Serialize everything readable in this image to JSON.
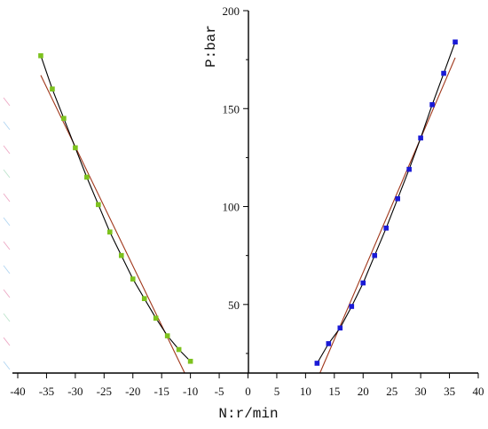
{
  "chart_data": {
    "type": "scatter",
    "title": "",
    "xlabel": "N:r/min",
    "ylabel": "P:bar",
    "xlim": [
      -40,
      40
    ],
    "ylim": [
      15,
      200
    ],
    "x_ticks": [
      -40,
      -35,
      -30,
      -25,
      -20,
      -15,
      -10,
      -5,
      0,
      5,
      10,
      15,
      20,
      25,
      30,
      35,
      40
    ],
    "y_ticks": [
      50,
      100,
      150,
      200
    ],
    "grid": false,
    "legend": "none",
    "colors": {
      "left_points": "#7dc21e",
      "right_points": "#1a1ad6",
      "data_line": "#000000",
      "fit_line": "#a0361a"
    },
    "series": [
      {
        "points": [
          [
            -36,
            177
          ],
          [
            -34,
            160
          ],
          [
            -32,
            145
          ],
          [
            -30,
            130
          ],
          [
            -28,
            115
          ],
          [
            -26,
            101
          ],
          [
            -24,
            87
          ],
          [
            -22,
            75
          ],
          [
            -20,
            63
          ],
          [
            -18,
            53
          ],
          [
            -16,
            43
          ],
          [
            -14,
            34
          ],
          [
            -12,
            27
          ],
          [
            -10,
            21
          ]
        ],
        "fit": [
          [
            -36,
            167
          ],
          [
            -11,
            15
          ]
        ]
      },
      {
        "points": [
          [
            12,
            20
          ],
          [
            14,
            30
          ],
          [
            16,
            38
          ],
          [
            18,
            49
          ],
          [
            20,
            61
          ],
          [
            22,
            75
          ],
          [
            24,
            89
          ],
          [
            26,
            104
          ],
          [
            28,
            119
          ],
          [
            30,
            135
          ],
          [
            32,
            152
          ],
          [
            34,
            168
          ],
          [
            36,
            184
          ]
        ],
        "fit": [
          [
            12.5,
            15
          ],
          [
            36,
            176
          ]
        ]
      }
    ]
  }
}
